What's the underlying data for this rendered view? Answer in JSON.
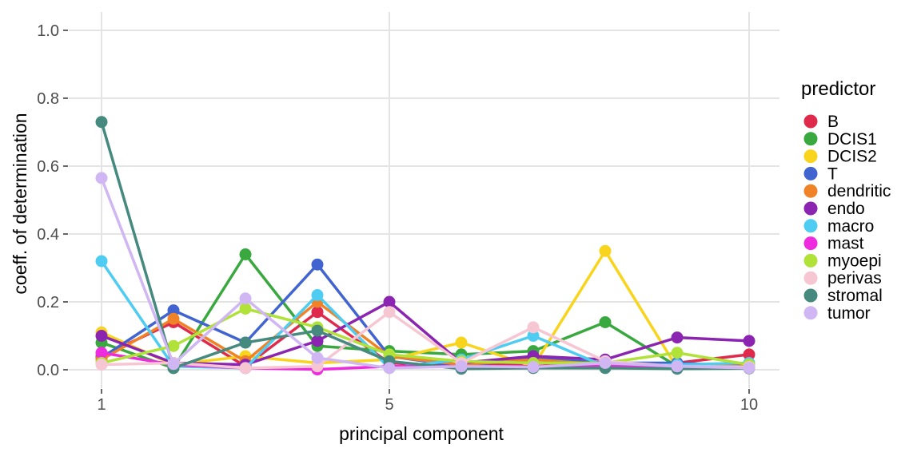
{
  "chart_data": {
    "type": "line",
    "title": "",
    "xlabel": "principal component",
    "ylabel": "coeff. of determination",
    "x": [
      1,
      2,
      3,
      4,
      5,
      6,
      7,
      8,
      9,
      10
    ],
    "xticks": [
      1,
      5,
      10
    ],
    "yticks": [
      "0.0",
      "0.2",
      "0.4",
      "0.6",
      "0.8",
      "1.0"
    ],
    "ytick_values": [
      0.0,
      0.2,
      0.4,
      0.6,
      0.8,
      1.0
    ],
    "xlim": [
      0.55,
      10.45
    ],
    "ylim": [
      0,
      1
    ],
    "grid": true,
    "legend": {
      "title": "predictor",
      "position": "right"
    },
    "style": {
      "grid_color": "#e4e4e4",
      "tick_mark_color": "#333333",
      "tick_label_color": "#4d4d4d",
      "background": "#ffffff",
      "point_radius": 7.5,
      "line_width": 3.5
    },
    "series": [
      {
        "name": "B",
        "color": "#e02a4c",
        "values": [
          0.04,
          0.14,
          0.01,
          0.17,
          0.02,
          0.01,
          0.02,
          0.01,
          0.02,
          0.045
        ]
      },
      {
        "name": "DCIS1",
        "color": "#38a83f",
        "values": [
          0.08,
          0.005,
          0.34,
          0.07,
          0.055,
          0.045,
          0.055,
          0.14,
          0.01,
          0.01
        ]
      },
      {
        "name": "DCIS2",
        "color": "#f9d41c",
        "values": [
          0.11,
          0.015,
          0.04,
          0.02,
          0.03,
          0.08,
          0.01,
          0.35,
          0.005,
          0.015
        ]
      },
      {
        "name": "T",
        "color": "#4164d1",
        "values": [
          0.035,
          0.175,
          0.08,
          0.31,
          0.04,
          0.01,
          0.035,
          0.02,
          0.02,
          0.01
        ]
      },
      {
        "name": "dendritic",
        "color": "#f08228",
        "values": [
          0.03,
          0.15,
          0.025,
          0.2,
          0.04,
          0.015,
          0.03,
          0.015,
          0.01,
          0.01
        ]
      },
      {
        "name": "endo",
        "color": "#8b24b0",
        "values": [
          0.1,
          0.02,
          0.015,
          0.085,
          0.2,
          0.02,
          0.04,
          0.03,
          0.095,
          0.085
        ]
      },
      {
        "name": "macro",
        "color": "#4fccf2",
        "values": [
          0.32,
          0.01,
          0.005,
          0.22,
          0.005,
          0.03,
          0.1,
          0.01,
          0.015,
          0.02
        ]
      },
      {
        "name": "mast",
        "color": "#ee2bdf",
        "values": [
          0.05,
          0.015,
          0.005,
          0.001,
          0.01,
          0.01,
          0.01,
          0.01,
          0.008,
          0.005
        ]
      },
      {
        "name": "myoepi",
        "color": "#b0e23a",
        "values": [
          0.02,
          0.07,
          0.18,
          0.125,
          0.045,
          0.025,
          0.02,
          0.02,
          0.05,
          0.015
        ]
      },
      {
        "name": "perivas",
        "color": "#f6c6d3",
        "values": [
          0.015,
          0.02,
          0.005,
          0.01,
          0.17,
          0.02,
          0.125,
          0.025,
          0.01,
          0.008
        ]
      },
      {
        "name": "stromal",
        "color": "#45897f",
        "values": [
          0.73,
          0.005,
          0.08,
          0.115,
          0.025,
          0.003,
          0.005,
          0.005,
          0.003,
          0.004
        ]
      },
      {
        "name": "tumor",
        "color": "#d0b6f2",
        "values": [
          0.565,
          0.017,
          0.21,
          0.035,
          0.005,
          0.01,
          0.008,
          0.02,
          0.01,
          0.005
        ]
      }
    ]
  }
}
